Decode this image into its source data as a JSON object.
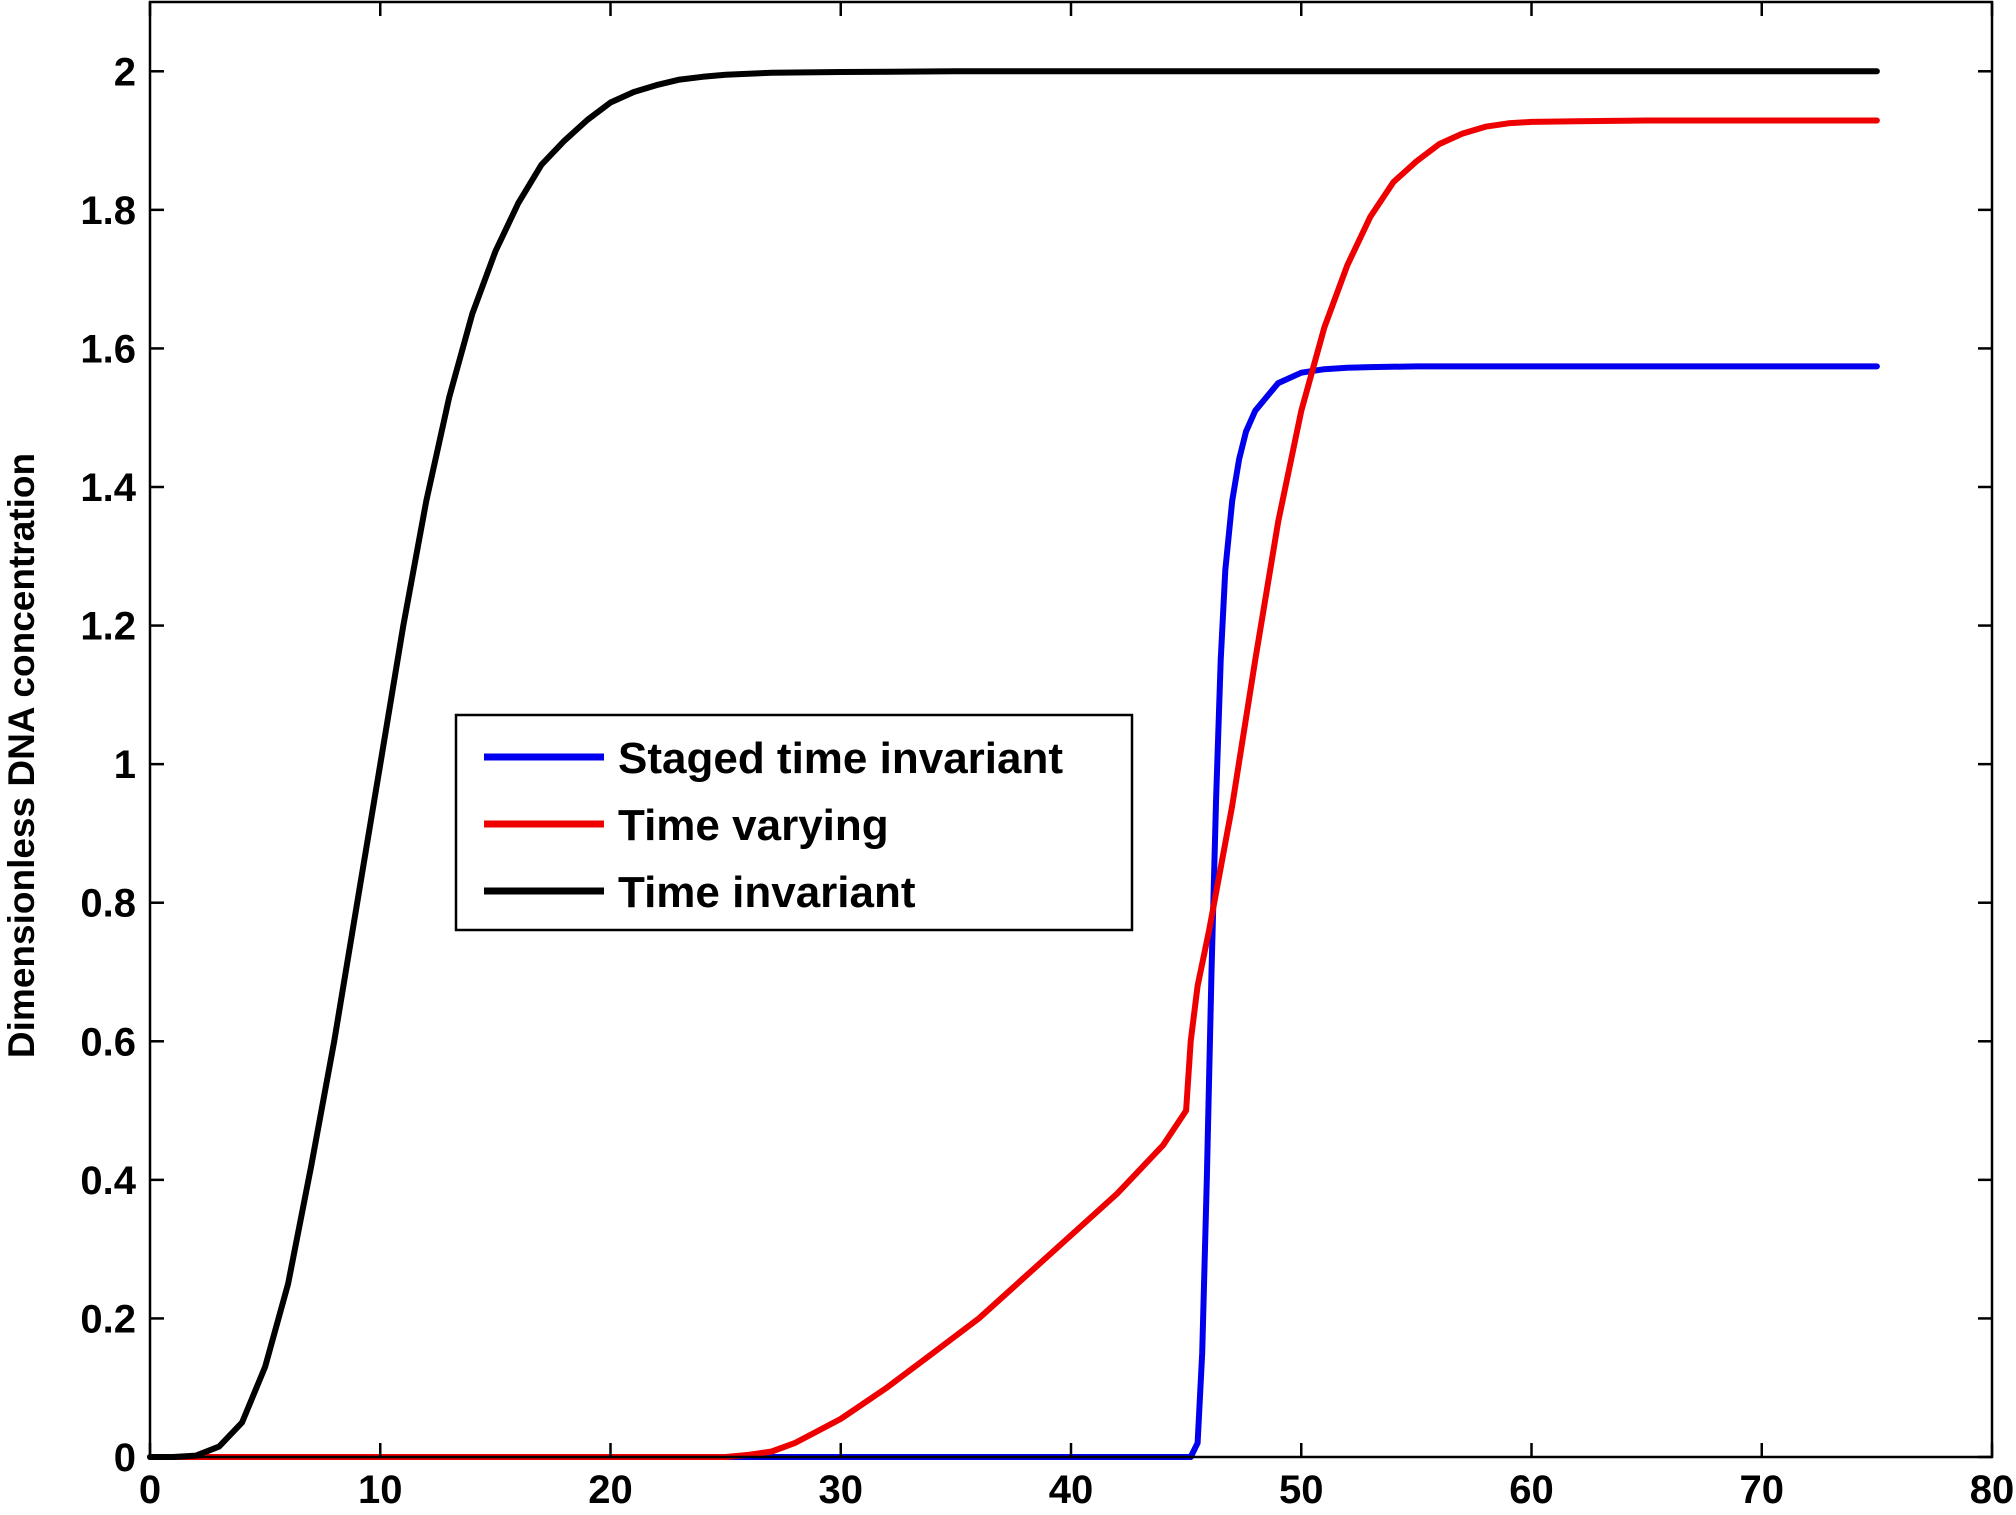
{
  "chart_data": {
    "type": "line",
    "title": "",
    "xlabel": "",
    "ylabel": "Dimensionless DNA concentration",
    "xlim": [
      0,
      80
    ],
    "ylim": [
      0,
      2.1
    ],
    "xticks": [
      0,
      10,
      20,
      30,
      40,
      50,
      60,
      70,
      80
    ],
    "xtick_labels": [
      "0",
      "10",
      "20",
      "30",
      "40",
      "50",
      "60",
      "70",
      "80"
    ],
    "yticks": [
      0,
      0.2,
      0.4,
      0.6,
      0.8,
      1,
      1.2,
      1.4,
      1.6,
      1.8,
      2
    ],
    "ytick_labels": [
      "0",
      "0.2",
      "0.4",
      "0.6",
      "0.8",
      "1",
      "1.2",
      "1.4",
      "1.6",
      "1.8",
      "2"
    ],
    "grid": false,
    "legend_position": "center-left",
    "series": [
      {
        "name": "Staged time invariant",
        "color": "#0000ee",
        "x": [
          0,
          45.2,
          45.5,
          45.7,
          45.9,
          46.1,
          46.3,
          46.5,
          46.7,
          47.0,
          47.3,
          47.6,
          48.0,
          48.5,
          49.0,
          50.0,
          51.0,
          52.0,
          53.0,
          55.0,
          60.0,
          65.0,
          70.0,
          75.0
        ],
        "y": [
          0,
          0,
          0.02,
          0.15,
          0.4,
          0.7,
          0.95,
          1.15,
          1.28,
          1.38,
          1.44,
          1.48,
          1.51,
          1.53,
          1.55,
          1.565,
          1.57,
          1.572,
          1.573,
          1.574,
          1.574,
          1.574,
          1.574,
          1.574
        ]
      },
      {
        "name": "Time varying",
        "color": "#ee0000",
        "x": [
          0,
          10,
          20,
          25,
          26,
          27,
          28,
          30,
          32,
          34,
          36,
          38,
          40,
          42,
          44,
          45,
          45.2,
          45.5,
          46,
          47,
          48,
          49,
          50,
          51,
          52,
          53,
          54,
          55,
          56,
          57,
          58,
          59,
          60,
          62,
          65,
          70,
          75
        ],
        "y": [
          0,
          0,
          0,
          0,
          0.003,
          0.008,
          0.02,
          0.055,
          0.1,
          0.15,
          0.2,
          0.26,
          0.32,
          0.38,
          0.45,
          0.5,
          0.6,
          0.68,
          0.76,
          0.94,
          1.15,
          1.35,
          1.51,
          1.63,
          1.72,
          1.79,
          1.84,
          1.87,
          1.895,
          1.91,
          1.92,
          1.925,
          1.927,
          1.928,
          1.929,
          1.929,
          1.929
        ]
      },
      {
        "name": "Time invariant",
        "color": "#000000",
        "x": [
          0,
          1,
          2,
          3,
          4,
          5,
          6,
          7,
          8,
          9,
          10,
          11,
          12,
          13,
          14,
          15,
          16,
          17,
          18,
          19,
          20,
          21,
          22,
          23,
          24,
          25,
          27,
          30,
          35,
          40,
          50,
          60,
          70,
          75
        ],
        "y": [
          0,
          0,
          0.002,
          0.015,
          0.05,
          0.13,
          0.25,
          0.42,
          0.6,
          0.8,
          1.0,
          1.2,
          1.38,
          1.53,
          1.65,
          1.74,
          1.81,
          1.865,
          1.9,
          1.93,
          1.955,
          1.97,
          1.98,
          1.988,
          1.992,
          1.995,
          1.998,
          1.999,
          2.0,
          2.0,
          2.0,
          2.0,
          2.0,
          2.0
        ]
      }
    ]
  }
}
